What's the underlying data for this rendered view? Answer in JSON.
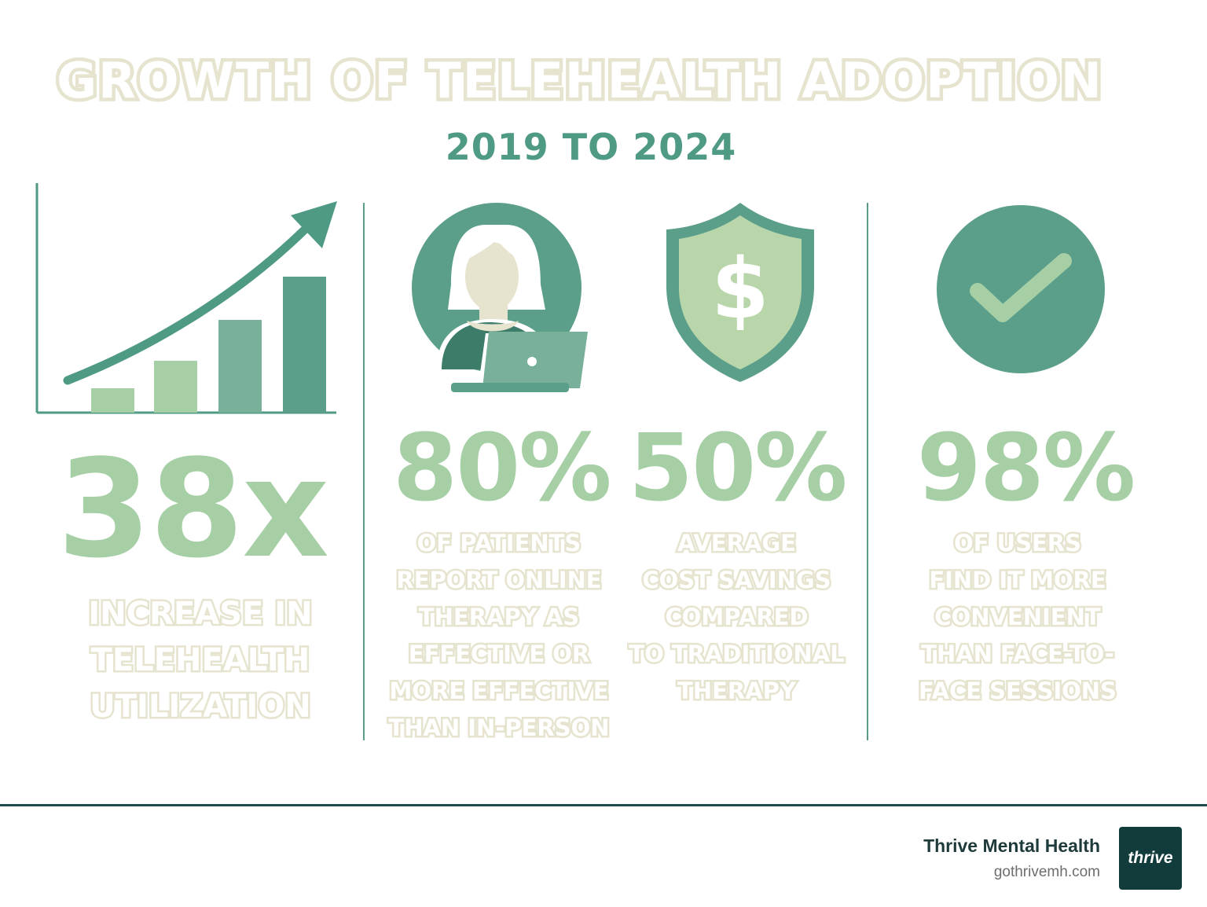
{
  "header": {
    "title": "GROWTH OF TELEHEALTH ADOPTION",
    "subtitle": "2019 TO 2024"
  },
  "stats": [
    {
      "value": "38x",
      "icon": "bar-chart-growth-icon",
      "description": [
        "INCREASE IN",
        "TELEHEALTH",
        "UTILIZATION"
      ]
    },
    {
      "value": "80%",
      "icon": "person-laptop-icon",
      "description": [
        "OF PATIENTS",
        "REPORT ONLINE",
        "THERAPY AS",
        "EFFECTIVE OR",
        "MORE EFFECTIVE",
        "THAN IN-PERSON"
      ]
    },
    {
      "value": "50%",
      "icon": "shield-dollar-icon",
      "description": [
        "AVERAGE",
        "COST SAVINGS",
        "COMPARED",
        "TO TRADITIONAL",
        "THERAPY"
      ]
    },
    {
      "value": "98%",
      "icon": "checkmark-circle-icon",
      "description": [
        "OF USERS",
        "FIND IT MORE",
        "CONVENIENT",
        "THAN FACE-TO-",
        "FACE SESSIONS"
      ]
    }
  ],
  "footer": {
    "brand_name": "Thrive Mental Health",
    "brand_url": "gothrivemh.com",
    "logo_text": "thrive"
  },
  "colors": {
    "dark_green": "#4f9a84",
    "light_green": "#a6cfa6",
    "cream": "#e6e3cf",
    "brand_dark": "#123c3c"
  }
}
